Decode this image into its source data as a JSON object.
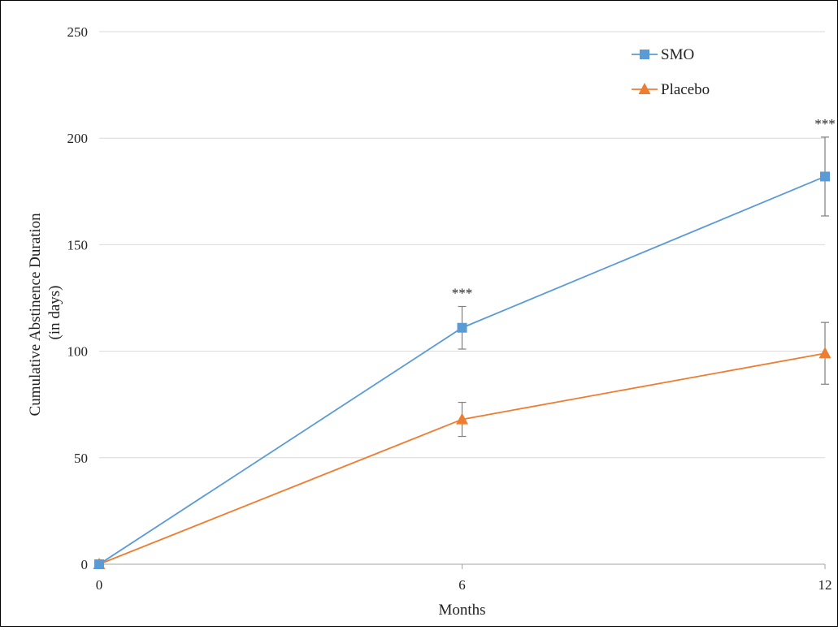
{
  "chart_data": {
    "type": "line",
    "xlabel": "Months",
    "ylabel": "Cumulative Abstinence Duration (in days)",
    "ylabel_lines": [
      "Cumulative Abstinence Duration",
      "(in days)"
    ],
    "x": [
      0,
      6,
      12
    ],
    "x_tick_labels": [
      "0",
      "6",
      "12"
    ],
    "ylim": [
      0,
      250
    ],
    "y_ticks": [
      0,
      50,
      100,
      150,
      200,
      250
    ],
    "grid": "horizontal",
    "legend_position": "top-right",
    "series": [
      {
        "name": "SMO",
        "values": [
          0,
          111,
          182
        ],
        "error": [
          0,
          10,
          18.5
        ],
        "marker": "square",
        "color": "#5b9bd5",
        "annotations": [
          "",
          "***",
          "***"
        ]
      },
      {
        "name": "Placebo",
        "values": [
          0,
          68,
          99
        ],
        "error": [
          0,
          8,
          14.5
        ],
        "marker": "triangle",
        "color": "#ed7d31",
        "annotations": [
          "",
          "",
          ""
        ]
      }
    ]
  }
}
